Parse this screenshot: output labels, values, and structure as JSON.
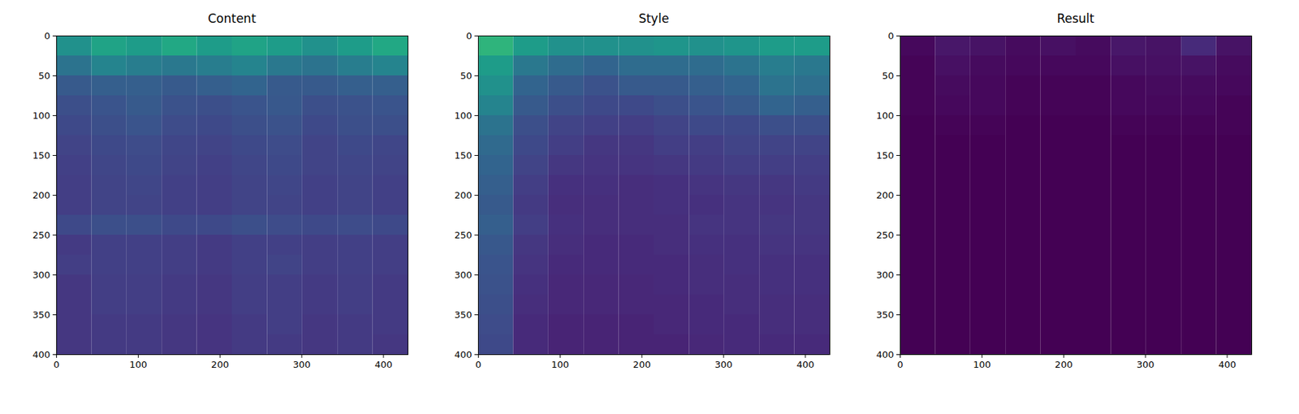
{
  "chart_data": [
    {
      "type": "heatmap",
      "title": "Content",
      "color": "viridis",
      "xlim": [
        0,
        430
      ],
      "ylim": [
        400,
        0
      ],
      "xticks": [
        0,
        100,
        200,
        300,
        400
      ],
      "yticks": [
        0,
        50,
        100,
        150,
        200,
        250,
        300,
        350,
        400
      ],
      "zlim": [
        0,
        1
      ],
      "x_bins": [
        0,
        43,
        86,
        129,
        172,
        215,
        258,
        301,
        344,
        387,
        430
      ],
      "y_bins": [
        0,
        25,
        50,
        75,
        100,
        125,
        150,
        175,
        200,
        225,
        250,
        275,
        300,
        325,
        350,
        375,
        400
      ],
      "cells": [
        [
          0.5,
          0.58,
          0.55,
          0.6,
          0.55,
          0.58,
          0.55,
          0.5,
          0.55,
          0.6
        ],
        [
          0.38,
          0.45,
          0.42,
          0.4,
          0.42,
          0.45,
          0.4,
          0.38,
          0.42,
          0.45
        ],
        [
          0.28,
          0.3,
          0.3,
          0.28,
          0.3,
          0.32,
          0.28,
          0.28,
          0.3,
          0.3
        ],
        [
          0.24,
          0.26,
          0.28,
          0.25,
          0.24,
          0.26,
          0.27,
          0.24,
          0.25,
          0.26
        ],
        [
          0.22,
          0.24,
          0.26,
          0.23,
          0.22,
          0.24,
          0.25,
          0.22,
          0.24,
          0.24
        ],
        [
          0.2,
          0.22,
          0.23,
          0.21,
          0.2,
          0.22,
          0.23,
          0.2,
          0.22,
          0.21
        ],
        [
          0.19,
          0.21,
          0.22,
          0.2,
          0.19,
          0.21,
          0.22,
          0.2,
          0.21,
          0.2
        ],
        [
          0.18,
          0.2,
          0.21,
          0.19,
          0.18,
          0.2,
          0.21,
          0.19,
          0.2,
          0.19
        ],
        [
          0.18,
          0.2,
          0.2,
          0.19,
          0.18,
          0.2,
          0.2,
          0.19,
          0.2,
          0.19
        ],
        [
          0.22,
          0.24,
          0.24,
          0.22,
          0.22,
          0.24,
          0.23,
          0.22,
          0.23,
          0.22
        ],
        [
          0.17,
          0.19,
          0.19,
          0.18,
          0.17,
          0.19,
          0.19,
          0.18,
          0.19,
          0.18
        ],
        [
          0.18,
          0.19,
          0.19,
          0.18,
          0.17,
          0.19,
          0.2,
          0.18,
          0.19,
          0.18
        ],
        [
          0.16,
          0.18,
          0.18,
          0.17,
          0.16,
          0.18,
          0.18,
          0.17,
          0.18,
          0.17
        ],
        [
          0.16,
          0.18,
          0.18,
          0.17,
          0.16,
          0.18,
          0.18,
          0.17,
          0.18,
          0.17
        ],
        [
          0.16,
          0.17,
          0.17,
          0.16,
          0.15,
          0.17,
          0.18,
          0.16,
          0.17,
          0.17
        ],
        [
          0.16,
          0.17,
          0.17,
          0.16,
          0.15,
          0.17,
          0.17,
          0.16,
          0.17,
          0.16
        ]
      ]
    },
    {
      "type": "heatmap",
      "title": "Style",
      "color": "viridis",
      "xlim": [
        0,
        430
      ],
      "ylim": [
        400,
        0
      ],
      "xticks": [
        0,
        100,
        200,
        300,
        400
      ],
      "yticks": [
        0,
        50,
        100,
        150,
        200,
        250,
        300,
        350,
        400
      ],
      "zlim": [
        0,
        1
      ],
      "x_bins": [
        0,
        43,
        86,
        129,
        172,
        215,
        258,
        301,
        344,
        387,
        430
      ],
      "y_bins": [
        0,
        25,
        50,
        75,
        100,
        125,
        150,
        175,
        200,
        225,
        250,
        275,
        300,
        325,
        350,
        375,
        400
      ],
      "cells": [
        [
          0.65,
          0.55,
          0.5,
          0.5,
          0.5,
          0.52,
          0.5,
          0.52,
          0.55,
          0.55
        ],
        [
          0.55,
          0.4,
          0.35,
          0.32,
          0.35,
          0.35,
          0.35,
          0.38,
          0.42,
          0.4
        ],
        [
          0.5,
          0.32,
          0.28,
          0.25,
          0.28,
          0.28,
          0.3,
          0.32,
          0.38,
          0.36
        ],
        [
          0.45,
          0.28,
          0.24,
          0.22,
          0.22,
          0.24,
          0.26,
          0.28,
          0.32,
          0.3
        ],
        [
          0.38,
          0.24,
          0.2,
          0.19,
          0.18,
          0.2,
          0.22,
          0.22,
          0.24,
          0.24
        ],
        [
          0.34,
          0.22,
          0.18,
          0.16,
          0.16,
          0.18,
          0.18,
          0.2,
          0.2,
          0.2
        ],
        [
          0.32,
          0.2,
          0.16,
          0.15,
          0.15,
          0.16,
          0.17,
          0.18,
          0.18,
          0.18
        ],
        [
          0.3,
          0.18,
          0.14,
          0.14,
          0.13,
          0.14,
          0.15,
          0.16,
          0.16,
          0.17
        ],
        [
          0.28,
          0.17,
          0.13,
          0.13,
          0.13,
          0.14,
          0.14,
          0.15,
          0.15,
          0.16
        ],
        [
          0.3,
          0.18,
          0.14,
          0.13,
          0.13,
          0.13,
          0.15,
          0.15,
          0.16,
          0.16
        ],
        [
          0.27,
          0.16,
          0.13,
          0.12,
          0.12,
          0.13,
          0.14,
          0.14,
          0.15,
          0.15
        ],
        [
          0.26,
          0.15,
          0.12,
          0.12,
          0.12,
          0.12,
          0.13,
          0.14,
          0.14,
          0.14
        ],
        [
          0.25,
          0.14,
          0.11,
          0.11,
          0.11,
          0.12,
          0.13,
          0.13,
          0.14,
          0.14
        ],
        [
          0.24,
          0.13,
          0.11,
          0.11,
          0.11,
          0.11,
          0.12,
          0.13,
          0.13,
          0.13
        ],
        [
          0.23,
          0.12,
          0.1,
          0.1,
          0.1,
          0.11,
          0.12,
          0.12,
          0.13,
          0.13
        ],
        [
          0.22,
          0.12,
          0.1,
          0.1,
          0.1,
          0.1,
          0.11,
          0.12,
          0.12,
          0.12
        ]
      ]
    },
    {
      "type": "heatmap",
      "title": "Result",
      "color": "viridis",
      "xlim": [
        0,
        430
      ],
      "ylim": [
        400,
        0
      ],
      "xticks": [
        0,
        100,
        200,
        300,
        400
      ],
      "yticks": [
        0,
        50,
        100,
        150,
        200,
        250,
        300,
        350,
        400
      ],
      "zlim": [
        0,
        1
      ],
      "x_bins": [
        0,
        43,
        86,
        129,
        172,
        215,
        258,
        301,
        344,
        387,
        430
      ],
      "y_bins": [
        0,
        25,
        50,
        75,
        100,
        125,
        150,
        175,
        200,
        225,
        250,
        275,
        300,
        325,
        350,
        375,
        400
      ],
      "cells": [
        [
          0.02,
          0.06,
          0.05,
          0.03,
          0.04,
          0.03,
          0.06,
          0.05,
          0.12,
          0.05
        ],
        [
          0.01,
          0.04,
          0.03,
          0.02,
          0.02,
          0.02,
          0.04,
          0.04,
          0.05,
          0.03
        ],
        [
          0.01,
          0.03,
          0.02,
          0.01,
          0.01,
          0.01,
          0.02,
          0.03,
          0.03,
          0.02
        ],
        [
          0.01,
          0.02,
          0.02,
          0.01,
          0.01,
          0.01,
          0.02,
          0.02,
          0.02,
          0.01
        ],
        [
          0,
          0.01,
          0.01,
          0,
          0,
          0,
          0.01,
          0.01,
          0.01,
          0.01
        ],
        [
          0,
          0,
          0,
          0,
          0,
          0,
          0,
          0,
          0,
          0
        ],
        [
          0,
          0,
          0,
          0,
          0,
          0,
          0,
          0,
          0,
          0
        ],
        [
          0,
          0,
          0,
          0,
          0,
          0,
          0,
          0,
          0,
          0
        ],
        [
          0,
          0,
          0,
          0,
          0,
          0,
          0,
          0,
          0,
          0
        ],
        [
          0,
          0,
          0,
          0,
          0,
          0,
          0,
          0,
          0,
          0
        ],
        [
          0,
          0,
          0,
          0,
          0,
          0,
          0,
          0,
          0,
          0
        ],
        [
          0,
          0,
          0,
          0,
          0,
          0,
          0,
          0,
          0,
          0
        ],
        [
          0,
          0,
          0,
          0,
          0,
          0,
          0,
          0,
          0,
          0
        ],
        [
          0,
          0,
          0,
          0,
          0,
          0,
          0,
          0,
          0,
          0
        ],
        [
          0,
          0,
          0,
          0,
          0,
          0,
          0,
          0,
          0,
          0
        ],
        [
          0,
          0,
          0,
          0,
          0,
          0,
          0,
          0,
          0,
          0
        ]
      ]
    }
  ]
}
